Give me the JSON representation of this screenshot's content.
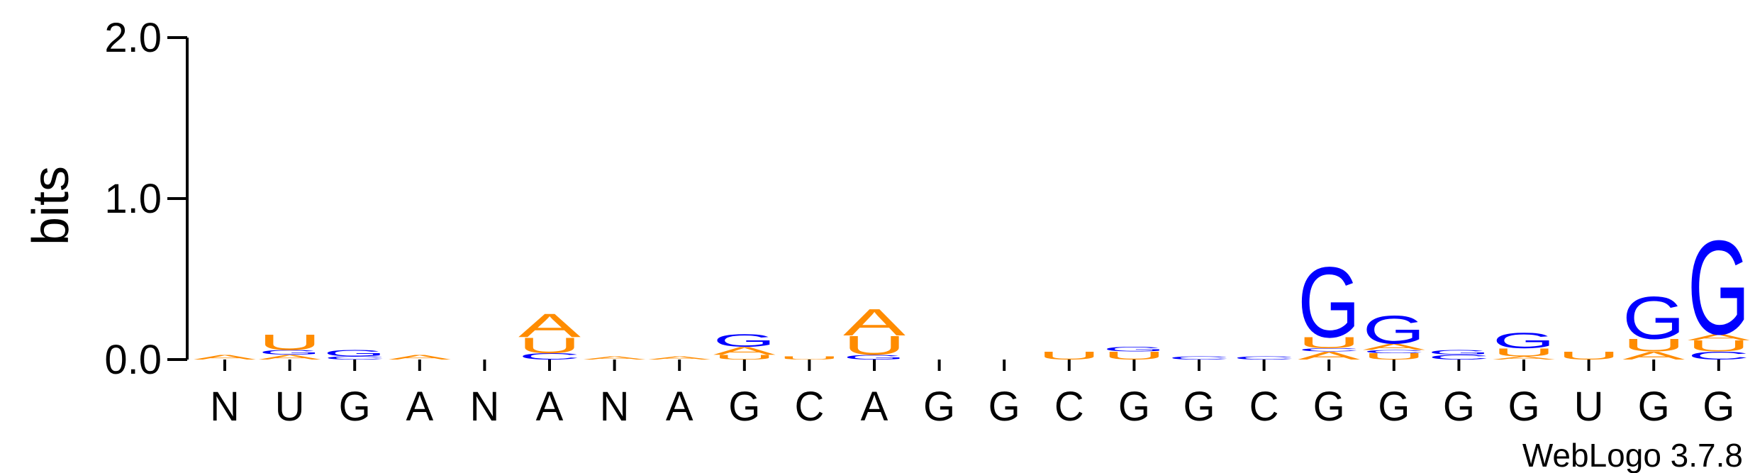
{
  "chart_data": {
    "type": "logo",
    "ylabel": "bits",
    "footer": "WebLogo 3.7.8",
    "ylim": [
      0,
      2
    ],
    "yticks": [
      {
        "value": 0,
        "label": "0.0"
      },
      {
        "value": 1,
        "label": "1.0"
      },
      {
        "value": 2,
        "label": "2.0"
      }
    ],
    "colors": {
      "A": "#ff8c00",
      "U": "#ff8c00",
      "G": "#0000ff",
      "C": "#0000ff"
    },
    "categories": [
      "N",
      "U",
      "G",
      "A",
      "N",
      "A",
      "N",
      "A",
      "G",
      "C",
      "A",
      "G",
      "G",
      "C",
      "G",
      "G",
      "C",
      "G",
      "G",
      "G",
      "G",
      "U",
      "G",
      "G"
    ],
    "stacks": [
      [
        {
          "letter": "A",
          "value": 0.03
        }
      ],
      [
        {
          "letter": "A",
          "value": 0.03
        },
        {
          "letter": "G",
          "value": 0.03
        },
        {
          "letter": "U",
          "value": 0.1
        }
      ],
      [
        {
          "letter": "C",
          "value": 0.02
        },
        {
          "letter": "G",
          "value": 0.04
        }
      ],
      [
        {
          "letter": "A",
          "value": 0.03
        }
      ],
      [],
      [
        {
          "letter": "C",
          "value": 0.04
        },
        {
          "letter": "U",
          "value": 0.1
        },
        {
          "letter": "A",
          "value": 0.15
        }
      ],
      [
        {
          "letter": "A",
          "value": 0.02
        }
      ],
      [
        {
          "letter": "A",
          "value": 0.02
        }
      ],
      [
        {
          "letter": "U",
          "value": 0.03
        },
        {
          "letter": "A",
          "value": 0.05
        },
        {
          "letter": "G",
          "value": 0.08
        }
      ],
      [
        {
          "letter": "U",
          "value": 0.02
        }
      ],
      [
        {
          "letter": "G",
          "value": 0.03
        },
        {
          "letter": "U",
          "value": 0.12
        },
        {
          "letter": "A",
          "value": 0.17
        }
      ],
      [],
      [],
      [
        {
          "letter": "U",
          "value": 0.05
        }
      ],
      [
        {
          "letter": "U",
          "value": 0.05
        },
        {
          "letter": "G",
          "value": 0.03
        }
      ],
      [
        {
          "letter": "C",
          "value": 0.02
        }
      ],
      [
        {
          "letter": "C",
          "value": 0.02
        }
      ],
      [
        {
          "letter": "A",
          "value": 0.05
        },
        {
          "letter": "C",
          "value": 0.02
        },
        {
          "letter": "U",
          "value": 0.07
        },
        {
          "letter": "G",
          "value": 0.45
        }
      ],
      [
        {
          "letter": "U",
          "value": 0.04
        },
        {
          "letter": "C",
          "value": 0.02
        },
        {
          "letter": "A",
          "value": 0.04
        },
        {
          "letter": "G",
          "value": 0.18
        }
      ],
      [
        {
          "letter": "C",
          "value": 0.03
        },
        {
          "letter": "G",
          "value": 0.03
        }
      ],
      [
        {
          "letter": "A",
          "value": 0.02
        },
        {
          "letter": "U",
          "value": 0.05
        },
        {
          "letter": "G",
          "value": 0.1
        }
      ],
      [
        {
          "letter": "U",
          "value": 0.05
        }
      ],
      [
        {
          "letter": "A",
          "value": 0.05
        },
        {
          "letter": "U",
          "value": 0.08
        },
        {
          "letter": "G",
          "value": 0.27
        }
      ],
      [
        {
          "letter": "C",
          "value": 0.05
        },
        {
          "letter": "U",
          "value": 0.07
        },
        {
          "letter": "A",
          "value": 0.04
        },
        {
          "letter": "G",
          "value": 0.6
        }
      ]
    ]
  }
}
